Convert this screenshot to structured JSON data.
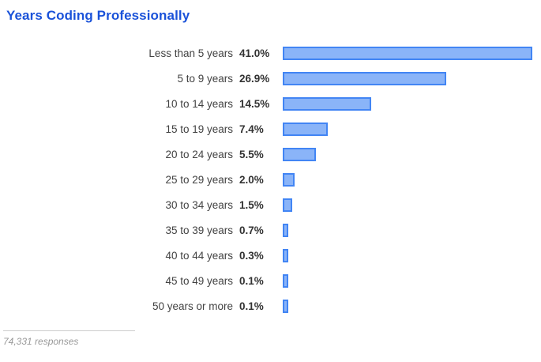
{
  "header": {
    "title": "Years Coding Professionally"
  },
  "footer": {
    "responses_label": "74,331 responses"
  },
  "colors": {
    "title": "#1a52d9",
    "bar_fill": "#8ab4f8",
    "bar_border": "#4285f4",
    "category_label": "#424242",
    "value_label": "#333333",
    "footer_text": "#999999",
    "divider": "#cccccc"
  },
  "chart_data": {
    "type": "bar",
    "orientation": "horizontal",
    "title": "Years Coding Professionally",
    "categories": [
      "Less than 5 years",
      "5 to 9 years",
      "10 to 14 years",
      "15 to 19 years",
      "20 to 24 years",
      "25 to 29 years",
      "30 to 34 years",
      "35 to 39 years",
      "40 to 44 years",
      "45 to 49 years",
      "50 years or more"
    ],
    "values": [
      41.0,
      26.9,
      14.5,
      7.4,
      5.5,
      2.0,
      1.5,
      0.7,
      0.3,
      0.1,
      0.1
    ],
    "value_labels": [
      "41.0%",
      "26.9%",
      "14.5%",
      "7.4%",
      "5.5%",
      "2.0%",
      "1.5%",
      "0.7%",
      "0.3%",
      "0.1%",
      "0.1%"
    ],
    "xlabel": "",
    "ylabel": "",
    "xlim": [
      0,
      43
    ],
    "grid": false,
    "legend": false,
    "footnote": "74,331 responses"
  }
}
